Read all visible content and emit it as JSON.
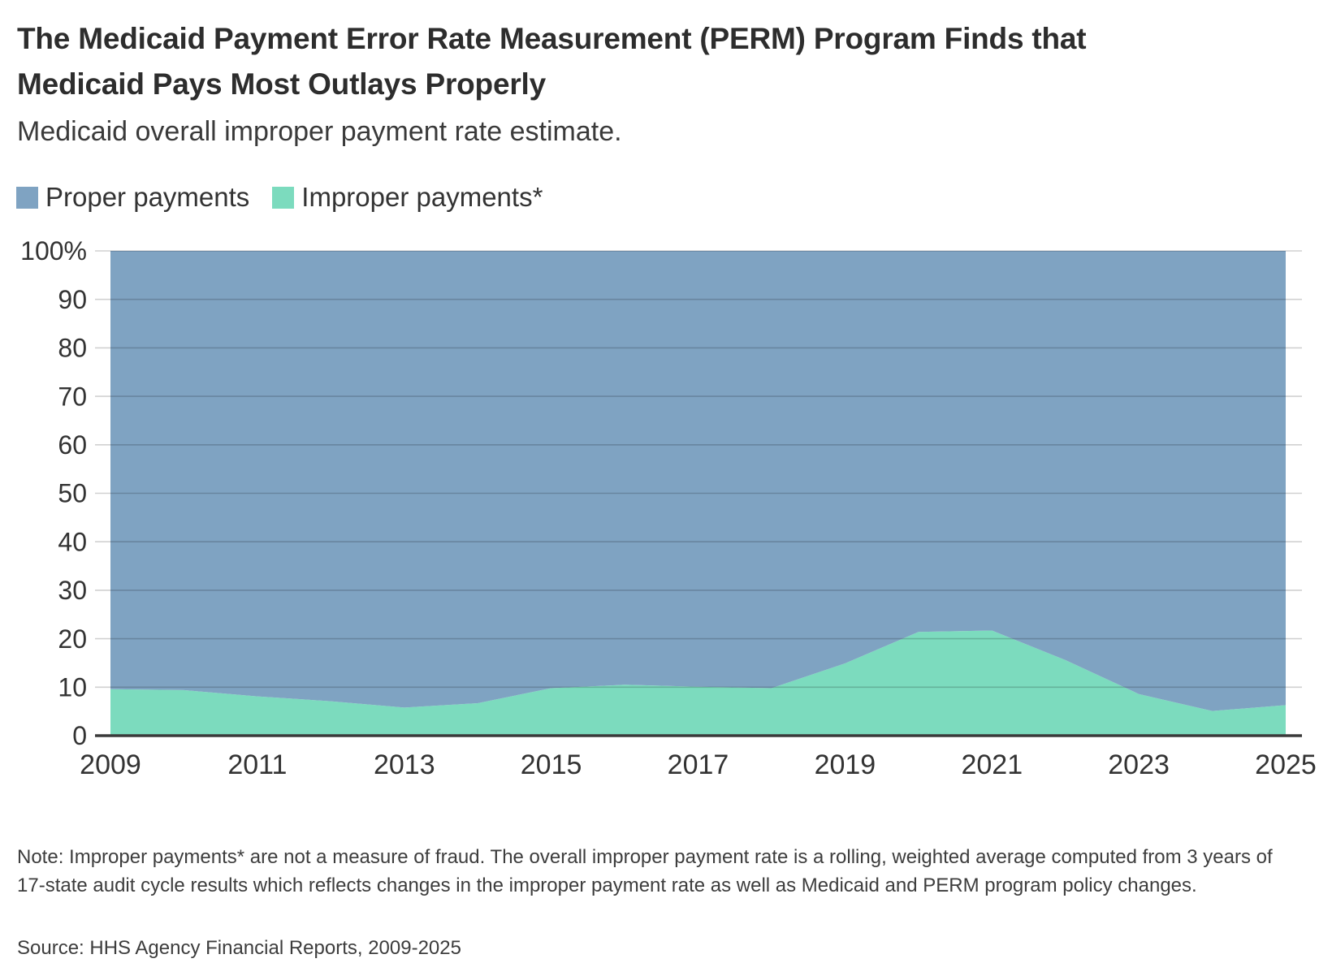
{
  "header": {
    "title_line1": "The Medicaid Payment Error Rate Measurement (PERM) Program Finds that",
    "title_line2": "Medicaid Pays Most Outlays Properly",
    "subtitle": "Medicaid overall improper payment rate estimate."
  },
  "legend": {
    "items": [
      {
        "label": "Proper payments",
        "color": "#7FA3C2"
      },
      {
        "label": "Improper payments*",
        "color": "#7CDBBE"
      }
    ]
  },
  "chart_data": {
    "type": "area",
    "stacked": true,
    "stacked_to_100_percent": true,
    "title": "Medicaid overall improper payment rate estimate.",
    "x": [
      2009,
      2010,
      2011,
      2012,
      2013,
      2014,
      2015,
      2016,
      2017,
      2018,
      2019,
      2020,
      2021,
      2022,
      2023,
      2024,
      2025
    ],
    "series": [
      {
        "name": "Improper payments*",
        "color": "#7CDBBE",
        "stack_position": "bottom",
        "values": [
          9.6,
          9.4,
          8.1,
          7.1,
          5.8,
          6.7,
          9.8,
          10.5,
          10.1,
          9.8,
          14.9,
          21.4,
          21.7,
          15.6,
          8.6,
          5.1,
          6.3
        ]
      },
      {
        "name": "Proper payments",
        "color": "#7FA3C2",
        "stack_position": "top",
        "values": [
          90.4,
          90.6,
          91.9,
          92.9,
          94.2,
          93.3,
          90.2,
          89.5,
          89.9,
          90.2,
          85.1,
          78.6,
          78.3,
          84.4,
          91.4,
          94.9,
          93.7
        ]
      }
    ],
    "ylim": [
      0,
      100
    ],
    "y_tick_values": [
      100,
      90,
      80,
      70,
      60,
      50,
      40,
      30,
      20,
      10,
      0
    ],
    "y_tick_labels": [
      "100%",
      "90",
      "80",
      "70",
      "60",
      "50",
      "40",
      "30",
      "20",
      "10",
      "0"
    ],
    "x_tick_values": [
      2009,
      2011,
      2013,
      2015,
      2017,
      2019,
      2021,
      2023,
      2025
    ],
    "x_tick_labels": [
      "2009",
      "2011",
      "2013",
      "2015",
      "2017",
      "2019",
      "2021",
      "2023",
      "2025"
    ],
    "grid": "horizontal",
    "legend_position": "top-left",
    "axis_color": "#3a3a3a",
    "gridline_color_rgba": "rgba(0,0,0,0.18)"
  },
  "footer": {
    "note": "Note: Improper payments* are not a measure of fraud. The overall improper payment rate is a rolling, weighted average computed from 3 years of 17-state audit cycle results which reflects changes in the improper payment rate as well as Medicaid and PERM program policy changes.",
    "source": "Source: HHS Agency Financial Reports, 2009-2025"
  }
}
